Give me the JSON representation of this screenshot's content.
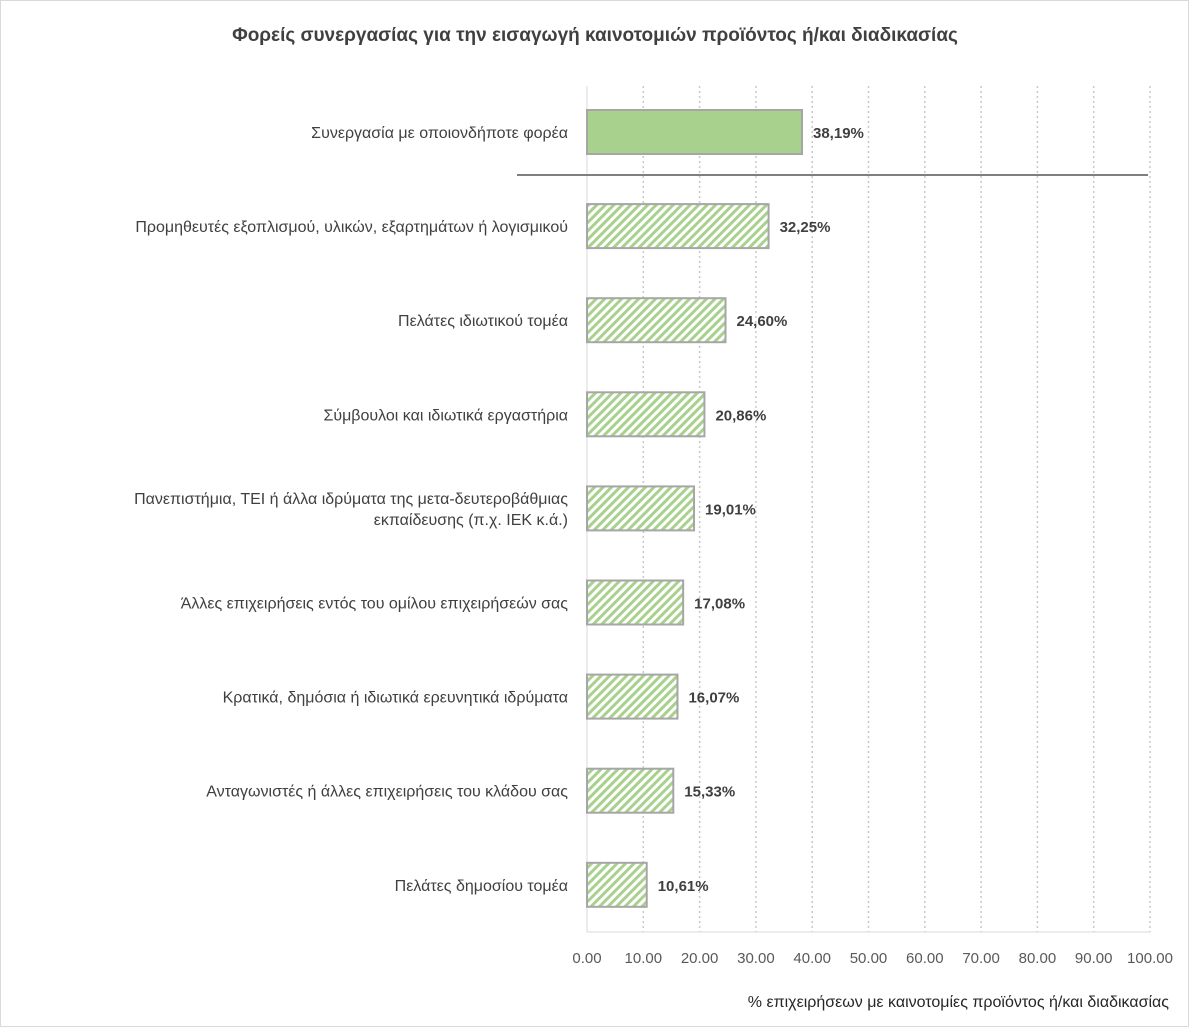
{
  "chart_data": {
    "type": "bar",
    "orientation": "horizontal",
    "title": "Φορείς συνεργασίας για την εισαγωγή καινοτομιών προϊόντος ή/και διαδικασίας",
    "xlabel": "% επιχειρήσεων με καινοτομίες προϊόντος ή/και διαδικασίας",
    "ylabel": "",
    "xlim": [
      0,
      100
    ],
    "xticks": [
      "0.00",
      "10.00",
      "20.00",
      "30.00",
      "40.00",
      "50.00",
      "60.00",
      "70.00",
      "80.00",
      "90.00",
      "100.00"
    ],
    "grid": true,
    "categories": [
      [
        "Συνεργασία με οποιονδήποτε φορέα"
      ],
      [
        "Προμηθευτές εξοπλισμού, υλικών, εξαρτημάτων ή λογισμικού"
      ],
      [
        "Πελάτες ιδιωτικού τομέα"
      ],
      [
        "Σύμβουλοι και ιδιωτικά εργαστήρια"
      ],
      [
        "Πανεπιστήμια, ΤΕΙ ή άλλα ιδρύματα της  μετα-δευτεροβάθμιας",
        "εκπαίδευσης (π.χ. ΙΕΚ κ.ά.)"
      ],
      [
        "Άλλες επιχειρήσεις εντός του ομίλου επιχειρήσεών σας"
      ],
      [
        "Κρατικά, δημόσια ή ιδιωτικά ερευνητικά ιδρύματα"
      ],
      [
        "Ανταγωνιστές ή άλλες επιχειρήσεις του κλάδου σας"
      ],
      [
        "Πελάτες δημοσίου τομέα"
      ]
    ],
    "values": [
      38.19,
      32.25,
      24.6,
      20.86,
      19.01,
      17.08,
      16.07,
      15.33,
      10.61
    ],
    "labels": [
      "38,19%",
      "32,25%",
      "24,60%",
      "20,86%",
      "19,01%",
      "17,08%",
      "16,07%",
      "15,33%",
      "10,61%"
    ],
    "colors": {
      "solid": "#a9d18e",
      "hatch": "#a9d18e",
      "border": "#a6a6a6"
    }
  }
}
